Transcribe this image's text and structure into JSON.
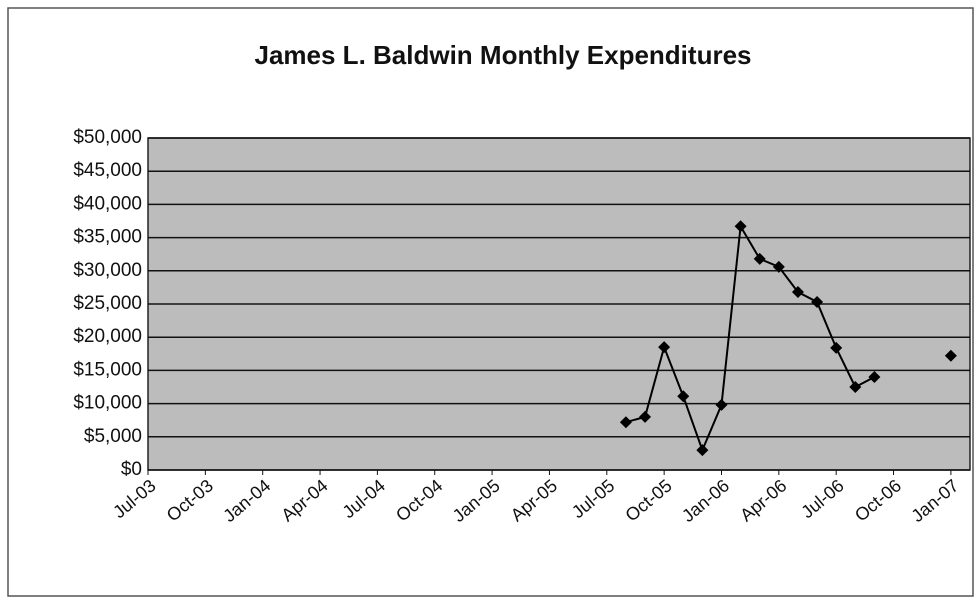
{
  "chart_data": {
    "type": "line",
    "title": "James L. Baldwin Monthly Expenditures",
    "x": [
      "2005-08",
      "2005-09",
      "2005-10",
      "2005-11",
      "2005-12",
      "2006-01",
      "2006-02",
      "2006-03",
      "2006-04",
      "2006-05",
      "2006-06",
      "2006-07",
      "2006-08",
      "2006-09",
      "2006-10",
      "2006-11",
      "2006-12",
      "2007-01"
    ],
    "series": [
      {
        "name": "Monthly Expenditures",
        "color": "#000000",
        "values": [
          7200,
          8000,
          18500,
          11100,
          3000,
          9800,
          36700,
          31800,
          30600,
          26800,
          25300,
          18400,
          12500,
          14000,
          null,
          null,
          null,
          17200
        ]
      }
    ],
    "xlim": [
      "2003-07",
      "2007-02"
    ],
    "xticks": [
      {
        "value": "2003-07",
        "label": "Jul-03"
      },
      {
        "value": "2003-10",
        "label": "Oct-03"
      },
      {
        "value": "2004-01",
        "label": "Jan-04"
      },
      {
        "value": "2004-04",
        "label": "Apr-04"
      },
      {
        "value": "2004-07",
        "label": "Jul-04"
      },
      {
        "value": "2004-10",
        "label": "Oct-04"
      },
      {
        "value": "2005-01",
        "label": "Jan-05"
      },
      {
        "value": "2005-04",
        "label": "Apr-05"
      },
      {
        "value": "2005-07",
        "label": "Jul-05"
      },
      {
        "value": "2005-10",
        "label": "Oct-05"
      },
      {
        "value": "2006-01",
        "label": "Jan-06"
      },
      {
        "value": "2006-04",
        "label": "Apr-06"
      },
      {
        "value": "2006-07",
        "label": "Jul-06"
      },
      {
        "value": "2006-10",
        "label": "Oct-06"
      },
      {
        "value": "2007-01",
        "label": "Jan-07"
      }
    ],
    "ylim": [
      0,
      50000
    ],
    "yticks": [
      {
        "value": 0,
        "label": "$0"
      },
      {
        "value": 5000,
        "label": "$5,000"
      },
      {
        "value": 10000,
        "label": "$10,000"
      },
      {
        "value": 15000,
        "label": "$15,000"
      },
      {
        "value": 20000,
        "label": "$20,000"
      },
      {
        "value": 25000,
        "label": "$25,000"
      },
      {
        "value": 30000,
        "label": "$30,000"
      },
      {
        "value": 35000,
        "label": "$35,000"
      },
      {
        "value": 40000,
        "label": "$40,000"
      },
      {
        "value": 45000,
        "label": "$45,000"
      },
      {
        "value": 50000,
        "label": "$50,000"
      }
    ],
    "grid": true
  }
}
